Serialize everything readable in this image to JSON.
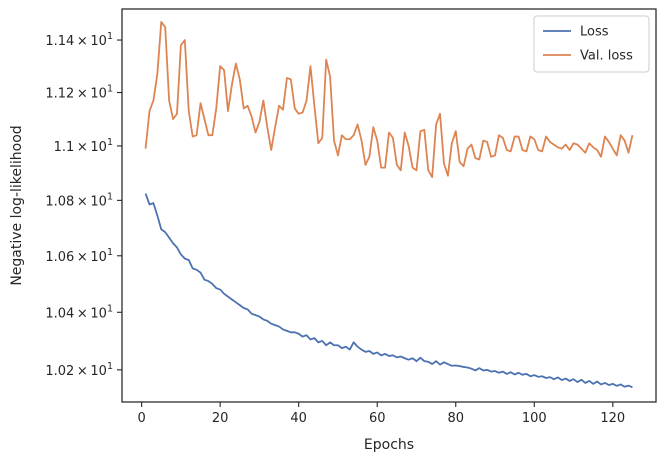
{
  "chart_data": {
    "type": "line",
    "title": "",
    "xlabel": "Epochs",
    "ylabel": "Negative log-likelihood",
    "xlim": [
      -5,
      131
    ],
    "ylim": [
      10.09,
      11.52
    ],
    "xticks": [
      0,
      20,
      40,
      60,
      80,
      100,
      120
    ],
    "xtick_labels": [
      "0",
      "20",
      "40",
      "60",
      "80",
      "100",
      "120"
    ],
    "yticks": [
      10.2,
      10.4,
      10.6,
      10.8,
      11.0,
      11.2,
      11.4
    ],
    "ytick_labels": [
      {
        "mantissa": "1.02",
        "exp": "1"
      },
      {
        "mantissa": "1.04",
        "exp": "1"
      },
      {
        "mantissa": "1.06",
        "exp": "1"
      },
      {
        "mantissa": "1.08",
        "exp": "1"
      },
      {
        "mantissa": "1.1",
        "exp": "1"
      },
      {
        "mantissa": "1.12",
        "exp": "1"
      },
      {
        "mantissa": "1.14",
        "exp": "1"
      }
    ],
    "yscale": "log",
    "grid": false,
    "legend_position": "top-right",
    "colors": {
      "loss": "#4c72b0",
      "val_loss": "#dd8452",
      "axis": "#262626"
    },
    "series": [
      {
        "name": "Loss",
        "x": [
          1,
          2,
          3,
          4,
          5,
          6,
          7,
          8,
          9,
          10,
          11,
          12,
          13,
          14,
          15,
          16,
          17,
          18,
          19,
          20,
          21,
          22,
          23,
          24,
          25,
          26,
          27,
          28,
          29,
          30,
          31,
          32,
          33,
          34,
          35,
          36,
          37,
          38,
          39,
          40,
          41,
          42,
          43,
          44,
          45,
          46,
          47,
          48,
          49,
          50,
          51,
          52,
          53,
          54,
          55,
          56,
          57,
          58,
          59,
          60,
          61,
          62,
          63,
          64,
          65,
          66,
          67,
          68,
          69,
          70,
          71,
          72,
          73,
          74,
          75,
          76,
          77,
          78,
          79,
          80,
          81,
          82,
          83,
          84,
          85,
          86,
          87,
          88,
          89,
          90,
          91,
          92,
          93,
          94,
          95,
          96,
          97,
          98,
          99,
          100,
          101,
          102,
          103,
          104,
          105,
          106,
          107,
          108,
          109,
          110,
          111,
          112,
          113,
          114,
          115,
          116,
          117,
          118,
          119,
          120,
          121,
          122,
          123,
          124,
          125
        ],
        "values": [
          10.825,
          10.785,
          10.79,
          10.745,
          10.695,
          10.685,
          10.665,
          10.645,
          10.63,
          10.605,
          10.59,
          10.585,
          10.555,
          10.55,
          10.54,
          10.515,
          10.51,
          10.5,
          10.485,
          10.48,
          10.465,
          10.455,
          10.445,
          10.435,
          10.425,
          10.415,
          10.41,
          10.395,
          10.39,
          10.385,
          10.375,
          10.37,
          10.36,
          10.355,
          10.35,
          10.34,
          10.335,
          10.33,
          10.33,
          10.325,
          10.315,
          10.32,
          10.305,
          10.31,
          10.295,
          10.3,
          10.285,
          10.295,
          10.285,
          10.285,
          10.275,
          10.28,
          10.27,
          10.295,
          10.28,
          10.27,
          10.262,
          10.265,
          10.255,
          10.26,
          10.25,
          10.255,
          10.248,
          10.25,
          10.243,
          10.246,
          10.24,
          10.235,
          10.24,
          10.23,
          10.242,
          10.23,
          10.228,
          10.22,
          10.23,
          10.218,
          10.226,
          10.22,
          10.214,
          10.215,
          10.213,
          10.21,
          10.208,
          10.204,
          10.198,
          10.206,
          10.198,
          10.2,
          10.194,
          10.196,
          10.19,
          10.194,
          10.186,
          10.192,
          10.184,
          10.19,
          10.183,
          10.186,
          10.178,
          10.182,
          10.176,
          10.178,
          10.172,
          10.175,
          10.168,
          10.174,
          10.165,
          10.17,
          10.162,
          10.168,
          10.158,
          10.166,
          10.155,
          10.162,
          10.152,
          10.16,
          10.15,
          10.155,
          10.148,
          10.152,
          10.145,
          10.15,
          10.142,
          10.146,
          10.14
        ]
      },
      {
        "name": "Val. loss",
        "x": [
          1,
          2,
          3,
          4,
          5,
          6,
          7,
          8,
          9,
          10,
          11,
          12,
          13,
          14,
          15,
          16,
          17,
          18,
          19,
          20,
          21,
          22,
          23,
          24,
          25,
          26,
          27,
          28,
          29,
          30,
          31,
          32,
          33,
          34,
          35,
          36,
          37,
          38,
          39,
          40,
          41,
          42,
          43,
          44,
          45,
          46,
          47,
          48,
          49,
          50,
          51,
          52,
          53,
          54,
          55,
          56,
          57,
          58,
          59,
          60,
          61,
          62,
          63,
          64,
          65,
          66,
          67,
          68,
          69,
          70,
          71,
          72,
          73,
          74,
          75,
          76,
          77,
          78,
          79,
          80,
          81,
          82,
          83,
          84,
          85,
          86,
          87,
          88,
          89,
          90,
          91,
          92,
          93,
          94,
          95,
          96,
          97,
          98,
          99,
          100,
          101,
          102,
          103,
          104,
          105,
          106,
          107,
          108,
          109,
          110,
          111,
          112,
          113,
          114,
          115,
          116,
          117,
          118,
          119,
          120,
          121,
          122,
          123,
          124,
          125
        ],
        "values": [
          10.99,
          11.13,
          11.17,
          11.27,
          11.47,
          11.45,
          11.17,
          11.1,
          11.12,
          11.38,
          11.4,
          11.13,
          11.035,
          11.04,
          11.16,
          11.1,
          11.04,
          11.04,
          11.14,
          11.3,
          11.285,
          11.13,
          11.23,
          11.31,
          11.25,
          11.14,
          11.15,
          11.11,
          11.05,
          11.09,
          11.17,
          11.07,
          10.985,
          11.07,
          11.15,
          11.135,
          11.255,
          11.25,
          11.14,
          11.12,
          11.125,
          11.17,
          11.3,
          11.15,
          11.01,
          11.03,
          11.325,
          11.26,
          11.02,
          10.965,
          11.04,
          11.025,
          11.025,
          11.04,
          11.08,
          11.02,
          10.93,
          10.96,
          11.07,
          11.02,
          10.92,
          10.92,
          11.05,
          11.03,
          10.93,
          10.91,
          11.05,
          11.0,
          10.92,
          10.91,
          11.055,
          11.06,
          10.91,
          10.885,
          11.08,
          11.12,
          10.935,
          10.89,
          11.01,
          11.055,
          10.94,
          10.925,
          10.99,
          11.005,
          10.955,
          10.95,
          11.02,
          11.015,
          10.96,
          10.965,
          11.04,
          11.03,
          10.985,
          10.98,
          11.035,
          11.035,
          10.985,
          10.98,
          11.035,
          11.025,
          10.985,
          10.98,
          11.035,
          11.015,
          11.005,
          10.995,
          10.99,
          11.005,
          10.985,
          11.01,
          11.005,
          10.99,
          10.975,
          11.01,
          10.995,
          10.985,
          10.96,
          11.035,
          11.015,
          10.99,
          10.965,
          11.04,
          11.02,
          10.975,
          11.04
        ]
      }
    ]
  }
}
